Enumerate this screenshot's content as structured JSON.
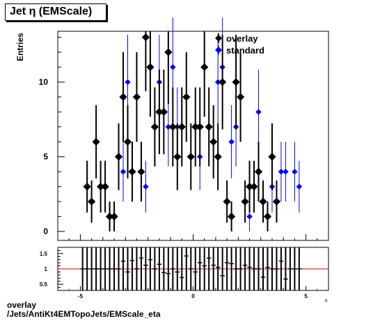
{
  "title": "Jet  η (EMScale)",
  "ylabel": "Entries",
  "footer": {
    "line1": "overlay",
    "line2": "/Jets/AntiKt4EMTopoJets/EMScale_eta"
  },
  "legend": [
    {
      "name": "overlay",
      "color": "#000000"
    },
    {
      "name": "standard",
      "color": "#0000ff"
    }
  ],
  "ratio_axis_corner_label": "η",
  "chart_data": [
    {
      "type": "scatter",
      "title": "Jet  η (EMScale)",
      "ylabel": "Entries",
      "xlim": [
        -6.0,
        6.0
      ],
      "ylim": [
        -0.6,
        13.4
      ],
      "x_ticks": [
        -5,
        0,
        5
      ],
      "y_ticks": [
        0,
        5,
        10
      ],
      "bin_width": 0.2,
      "legend_position": "top-right",
      "series": [
        {
          "name": "overlay",
          "color": "#000000",
          "x": [
            -4.7,
            -4.5,
            -4.3,
            -4.1,
            -3.9,
            -3.7,
            -3.5,
            -3.3,
            -3.1,
            -2.9,
            -2.7,
            -2.5,
            -2.3,
            -2.1,
            -1.9,
            -1.7,
            -1.5,
            -1.3,
            -1.1,
            -0.9,
            -0.7,
            -0.5,
            -0.3,
            -0.1,
            0.1,
            0.3,
            0.5,
            0.7,
            0.9,
            1.1,
            1.3,
            1.5,
            1.7,
            1.9,
            2.1,
            2.3,
            2.5,
            2.7,
            2.9,
            3.1,
            3.3,
            3.5,
            3.7,
            3.9,
            4.1,
            4.3,
            4.5,
            4.7
          ],
          "y": [
            3,
            2,
            6,
            3,
            3,
            1,
            1,
            5,
            9,
            6,
            4,
            9,
            4,
            13,
            11,
            7,
            8,
            8,
            12,
            7,
            5,
            7,
            9,
            5,
            7,
            7,
            11,
            7,
            6,
            5,
            10,
            2,
            1,
            10,
            9,
            2,
            3,
            3,
            4,
            2,
            1,
            5,
            2,
            0,
            0,
            0,
            0,
            0
          ]
        },
        {
          "name": "standard",
          "color": "#0000ff",
          "x": [
            -3.1,
            -2.9,
            -2.1,
            -1.5,
            -1.1,
            -0.9,
            -0.7,
            0.3,
            1.1,
            1.3,
            1.7,
            1.9,
            2.5,
            2.9,
            3.5,
            3.9,
            4.1,
            4.5,
            4.7
          ],
          "y": [
            4,
            10,
            3,
            10,
            7,
            11,
            7,
            5,
            10,
            11,
            6,
            7,
            1,
            8,
            3,
            4,
            4,
            4,
            3
          ]
        }
      ]
    },
    {
      "type": "scatter",
      "title": "",
      "xlim": [
        -6.0,
        6.0
      ],
      "ylim": [
        0.3,
        1.7
      ],
      "x_ticks": [
        -5,
        0,
        5
      ],
      "y_ticks": [
        0.5,
        1,
        1.5
      ],
      "reference_line": 1.0,
      "reference_color": "#cc0000",
      "series": [
        {
          "name": "ratio",
          "color": "#000000",
          "x": [
            -4.9,
            -4.7,
            -4.5,
            -4.3,
            -4.1,
            -3.9,
            -3.7,
            -3.5,
            -3.3,
            -3.1,
            -2.9,
            -2.7,
            -2.5,
            -2.3,
            -2.1,
            -1.9,
            -1.7,
            -1.5,
            -1.3,
            -1.1,
            -0.9,
            -0.7,
            -0.5,
            -0.3,
            -0.1,
            0.1,
            0.3,
            0.5,
            0.7,
            0.9,
            1.1,
            1.3,
            1.5,
            1.7,
            1.9,
            2.1,
            2.3,
            2.5,
            2.7,
            2.9,
            3.1,
            3.3,
            3.5,
            3.7,
            3.9,
            4.1,
            4.3,
            4.5,
            4.7
          ],
          "y": [
            1.0,
            1.0,
            1.0,
            1.0,
            1.0,
            1.0,
            1.0,
            1.0,
            1.0,
            1.25,
            0.9,
            1.27,
            1.0,
            1.35,
            1.12,
            1.3,
            1.0,
            1.15,
            0.88,
            0.85,
            1.0,
            0.9,
            0.72,
            1.42,
            1.0,
            0.9,
            1.2,
            1.1,
            1.35,
            1.12,
            1.05,
            0.78,
            1.2,
            1.17,
            1.0,
            1.0,
            1.12,
            1.05,
            1.0,
            1.0,
            0.73,
            1.05,
            1.0,
            1.0,
            1.25,
            0.67,
            1.0,
            1.0,
            1.0
          ]
        }
      ]
    }
  ]
}
